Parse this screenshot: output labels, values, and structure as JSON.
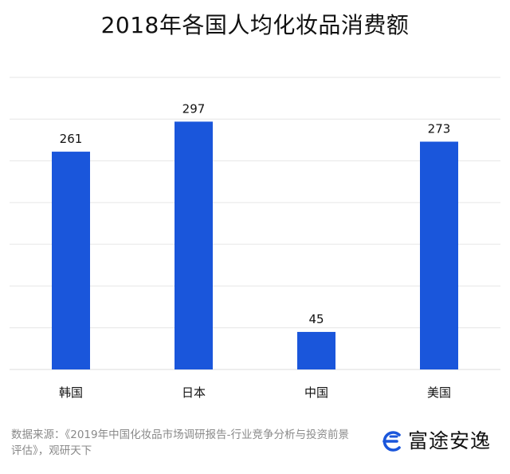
{
  "chart_data": {
    "type": "bar",
    "title": "2018年各国人均化妆品消费额",
    "categories": [
      "韩国",
      "日本",
      "中国",
      "美国"
    ],
    "values": [
      261,
      297,
      45,
      273
    ],
    "ylim": [
      0,
      350
    ],
    "grid": true,
    "bar_color": "#1a56db",
    "grid_color": "#e6e6e6",
    "data_labels": true
  },
  "footer": {
    "source": "数据来源：《2019年中国化妆品市场调研报告-行业竞争分析与投资前景评估》，观研天下"
  },
  "brand": {
    "name": "富途安逸",
    "icon": "brand-logo-icon",
    "color": "#1a56db"
  }
}
